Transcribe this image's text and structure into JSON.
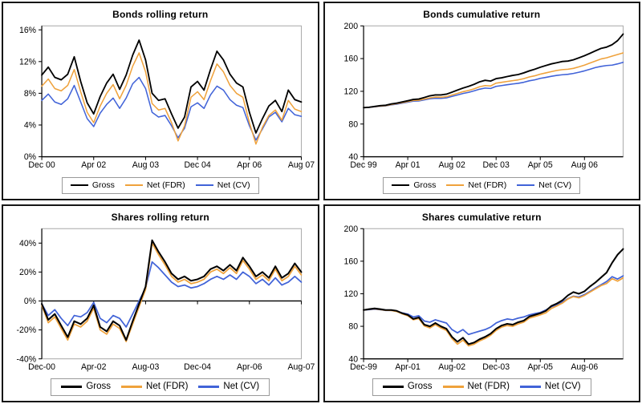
{
  "colors": {
    "gross": "#000000",
    "net_fdr": "#EFA23C",
    "net_cv": "#4163D8",
    "plot_border": "#aaaaaa",
    "axis": "#000000"
  },
  "chart_data": [
    {
      "id": "bonds-rolling-return",
      "type": "line",
      "title": "Bonds rolling return",
      "xlabel": "",
      "ylabel": "",
      "grid": false,
      "legend_position": "bottom",
      "x_start": "Dec 00",
      "x_step_months": 2,
      "x_tick_labels": [
        "Dec 00",
        "Apr 02",
        "Aug 03",
        "Dec 04",
        "Apr 06",
        "Aug 07"
      ],
      "x_tick_indices": [
        0,
        8,
        16,
        24,
        32,
        40
      ],
      "y_min": 0,
      "y_max": 16.5,
      "axis_at": 0,
      "y_ticks": [
        0,
        4,
        8,
        12,
        16
      ],
      "y_tick_labels": [
        "0%",
        "4%",
        "8%",
        "12%",
        "16%"
      ],
      "series": [
        {
          "name": "Gross",
          "color": "#000000",
          "width": 1.8,
          "values": [
            10.3,
            11.3,
            10.0,
            9.7,
            10.4,
            12.6,
            9.5,
            6.8,
            5.4,
            7.6,
            9.3,
            10.4,
            8.5,
            10.3,
            12.8,
            14.7,
            12.2,
            8.0,
            7.1,
            7.3,
            5.4,
            3.6,
            5.0,
            8.8,
            9.5,
            8.4,
            11.0,
            13.3,
            12.2,
            10.4,
            9.3,
            8.8,
            5.6,
            3.0,
            4.8,
            6.4,
            7.1,
            5.7,
            8.4,
            7.2,
            6.9
          ]
        },
        {
          "name": "Net (FDR)",
          "color": "#EFA23C",
          "width": 1.5,
          "values": [
            8.9,
            9.8,
            8.6,
            8.3,
            9.0,
            11.0,
            8.2,
            5.6,
            4.3,
            6.4,
            8.0,
            9.1,
            7.3,
            9.0,
            11.4,
            13.1,
            10.7,
            6.7,
            5.9,
            6.1,
            4.3,
            2.0,
            3.9,
            7.5,
            8.2,
            7.2,
            9.6,
            11.7,
            10.7,
            9.0,
            8.0,
            7.5,
            4.3,
            1.6,
            3.7,
            5.2,
            5.9,
            4.6,
            7.1,
            6.0,
            5.7
          ]
        },
        {
          "name": "Net (CV)",
          "color": "#4163D8",
          "width": 1.5,
          "values": [
            7.1,
            7.9,
            6.9,
            6.6,
            7.3,
            9.0,
            6.9,
            4.8,
            3.8,
            5.5,
            6.6,
            7.4,
            6.1,
            7.4,
            9.2,
            10.0,
            8.6,
            5.6,
            5.0,
            5.2,
            3.9,
            2.4,
            3.6,
            6.3,
            6.8,
            6.1,
            7.8,
            8.9,
            8.4,
            7.2,
            6.5,
            6.2,
            3.9,
            2.1,
            3.5,
            5.0,
            5.6,
            4.4,
            6.1,
            5.3,
            5.1
          ]
        }
      ]
    },
    {
      "id": "bonds-cumulative-return",
      "type": "line",
      "title": "Bonds cumulative return",
      "xlabel": "",
      "ylabel": "",
      "grid": false,
      "legend_position": "bottom",
      "x_start": "Dec 99",
      "x_step_months": 2,
      "x_tick_labels": [
        "Dec 99",
        "Apr 01",
        "Aug 02",
        "Dec 03",
        "Apr 05",
        "Aug 06"
      ],
      "x_tick_indices": [
        0,
        8,
        16,
        24,
        32,
        40
      ],
      "y_min": 40,
      "y_max": 200,
      "axis_at": 40,
      "y_ticks": [
        40,
        80,
        120,
        160,
        200
      ],
      "y_tick_labels": [
        "40",
        "80",
        "120",
        "160",
        "200"
      ],
      "series": [
        {
          "name": "Gross",
          "color": "#000000",
          "width": 1.8,
          "values": [
            100,
            100.5,
            101.5,
            102.5,
            103,
            104.5,
            105.5,
            107,
            108.5,
            110,
            110.5,
            112.5,
            114.5,
            115.5,
            115.5,
            116.5,
            119,
            121.5,
            124,
            126,
            128.5,
            131.5,
            133.5,
            132.5,
            135.5,
            136.5,
            138,
            139.5,
            140.5,
            142.5,
            145,
            147,
            149.5,
            151.5,
            153.5,
            155,
            156.5,
            157,
            158.5,
            161,
            163.5,
            166.5,
            169.5,
            172.5,
            174,
            177,
            182,
            190
          ]
        },
        {
          "name": "Net (FDR)",
          "color": "#EFA23C",
          "width": 1.5,
          "values": [
            100,
            100.4,
            101.2,
            102,
            102.5,
            103.8,
            104.8,
            106,
            107.5,
            108.8,
            109,
            110.5,
            112,
            113,
            112.8,
            113.5,
            115.5,
            117.5,
            119.5,
            121,
            123,
            125.5,
            127,
            126.5,
            130,
            131,
            132,
            133,
            134,
            135.5,
            137.5,
            139,
            141,
            142.5,
            144,
            145.5,
            146.5,
            147,
            148,
            150,
            152,
            154.5,
            157,
            159.5,
            161,
            163,
            165,
            167
          ]
        },
        {
          "name": "Net (CV)",
          "color": "#4163D8",
          "width": 1.5,
          "values": [
            100,
            100.3,
            101,
            101.7,
            102.2,
            103.4,
            104.3,
            105.4,
            106.8,
            108,
            108.2,
            109.5,
            110.8,
            111.5,
            111.3,
            112,
            113.8,
            115.5,
            117.3,
            118.7,
            120.5,
            122.5,
            124,
            123.5,
            126,
            127,
            128,
            129,
            129.8,
            131,
            132.8,
            134,
            135.8,
            137,
            138.3,
            139.5,
            140.3,
            140.8,
            141.8,
            143.3,
            145,
            147,
            149,
            150.5,
            151.5,
            152,
            153.5,
            155.5
          ]
        }
      ]
    },
    {
      "id": "shares-rolling-return",
      "type": "line",
      "title": "Shares rolling return",
      "xlabel": "",
      "ylabel": "",
      "grid": false,
      "legend_position": "bottom",
      "x_start": "Dec-00",
      "x_step_months": 2,
      "x_tick_labels": [
        "Dec-00",
        "Apr-02",
        "Aug-03",
        "Dec-04",
        "Apr-06",
        "Aug-07"
      ],
      "x_tick_indices": [
        0,
        8,
        16,
        24,
        32,
        40
      ],
      "y_min": -40,
      "y_max": 50,
      "axis_at": 0,
      "y_ticks": [
        -40,
        -20,
        0,
        20,
        40
      ],
      "y_tick_labels": [
        "-40%",
        "-20%",
        "0%",
        "20%",
        "40%"
      ],
      "series": [
        {
          "name": "Gross",
          "color": "#000000",
          "width": 2,
          "values": [
            -2,
            -13,
            -9,
            -17,
            -25,
            -14,
            -16,
            -12,
            -3,
            -18,
            -21,
            -14,
            -17,
            -27,
            -14,
            -2,
            10,
            42,
            34,
            27,
            19,
            15,
            17,
            14,
            15,
            17,
            22,
            24,
            21,
            25,
            21,
            30,
            24,
            17,
            20,
            16,
            24,
            16,
            19,
            26,
            20
          ]
        },
        {
          "name": "Net (FDR)",
          "color": "#EFA23C",
          "width": 1.7,
          "values": [
            -3,
            -15,
            -11,
            -19,
            -27,
            -16,
            -18,
            -14,
            -5,
            -20,
            -23,
            -16,
            -19,
            -28,
            -16,
            -4,
            8,
            40,
            32,
            25,
            17,
            13,
            15,
            12,
            13,
            15,
            20,
            22,
            19,
            23,
            19,
            28,
            22,
            15,
            18,
            14,
            22,
            14,
            17,
            24,
            18
          ]
        },
        {
          "name": "Net (CV)",
          "color": "#4163D8",
          "width": 1.7,
          "values": [
            -2,
            -10,
            -6,
            -12,
            -17,
            -10,
            -11,
            -8,
            -1,
            -12,
            -15,
            -10,
            -12,
            -18,
            -9,
            0,
            9,
            27,
            23,
            18,
            13,
            10,
            11,
            9,
            10,
            12,
            15,
            17,
            15,
            18,
            15,
            20,
            17,
            12,
            15,
            11,
            16,
            11,
            13,
            17,
            13
          ]
        }
      ]
    },
    {
      "id": "shares-cumulative-return",
      "type": "line",
      "title": "Shares cumulative return",
      "xlabel": "",
      "ylabel": "",
      "grid": false,
      "legend_position": "bottom",
      "x_start": "Dec-99",
      "x_step_months": 2,
      "x_tick_labels": [
        "Dec-99",
        "Apr-01",
        "Aug-02",
        "Dec-03",
        "Apr-05",
        "Aug-06"
      ],
      "x_tick_indices": [
        0,
        8,
        16,
        24,
        32,
        40
      ],
      "y_min": 40,
      "y_max": 200,
      "axis_at": 40,
      "y_ticks": [
        40,
        80,
        120,
        160,
        200
      ],
      "y_tick_labels": [
        "40",
        "80",
        "120",
        "160",
        "200"
      ],
      "series": [
        {
          "name": "Gross",
          "color": "#000000",
          "width": 2,
          "values": [
            100,
            101,
            102,
            101,
            100,
            100,
            99,
            96,
            94,
            89,
            91,
            82,
            80,
            84,
            80,
            77,
            67,
            61,
            66,
            58,
            60,
            64,
            67,
            71,
            77,
            81,
            83,
            82,
            85,
            87,
            92,
            94,
            96,
            99,
            105,
            108,
            112,
            118,
            122,
            120,
            123,
            129,
            134,
            140,
            146,
            158,
            168,
            175
          ]
        },
        {
          "name": "Net (FDR)",
          "color": "#EFA23C",
          "width": 1.7,
          "values": [
            100,
            100.8,
            101.5,
            100.6,
            99.6,
            99.5,
            98.2,
            95.3,
            93,
            88,
            89.5,
            80.5,
            78,
            82,
            78,
            75,
            65,
            58,
            63,
            56,
            58,
            62,
            65,
            69,
            75,
            79,
            81,
            80,
            83,
            85,
            90,
            92,
            94,
            96.5,
            102,
            105,
            108.5,
            113.5,
            116.5,
            115,
            118,
            122,
            126,
            130,
            132.5,
            138.5,
            135.5,
            139.5
          ]
        },
        {
          "name": "Net (CV)",
          "color": "#4163D8",
          "width": 1.7,
          "values": [
            100,
            100.5,
            101,
            100.5,
            99.5,
            99.5,
            98.5,
            96.5,
            95,
            91.5,
            93,
            86.5,
            85,
            88,
            86,
            84,
            76,
            72,
            76,
            70,
            72,
            74,
            76,
            79,
            84,
            87,
            89,
            88,
            90,
            91.5,
            94,
            95.5,
            97,
            100,
            104,
            106.5,
            110,
            114,
            117,
            116,
            119,
            123,
            127,
            131,
            135,
            141,
            138,
            142
          ]
        }
      ]
    }
  ]
}
